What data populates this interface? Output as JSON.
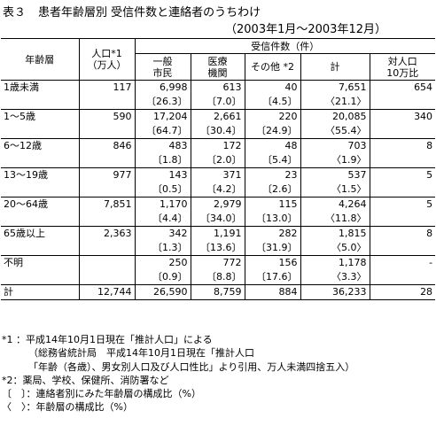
{
  "title": {
    "table_no": "表３",
    "text": "患者年齢層別 受信件数と連絡者のうちわけ"
  },
  "subtitle": "（2003年1月～2003年12月）",
  "headers": {
    "age": "年齢層",
    "pop_line1": "人口*1",
    "pop_line2": "（万人）",
    "group": "受信件数（件）",
    "general_line1": "一般",
    "general_line2": "市民",
    "medical_line1": "医療",
    "medical_line2": "機関",
    "other": "その他 *2",
    "total": "計",
    "ratio_line1": "対人口",
    "ratio_line2": "10万比"
  },
  "rows": [
    {
      "age": "1歳未満",
      "pop": "117",
      "general": "6,998",
      "medical": "613",
      "other": "40",
      "total": "7,651",
      "ratio": "654",
      "p_general": "〔26.3〕",
      "p_medical": "〔7.0〕",
      "p_other": "〔4.5〕",
      "p_total": "〈21.1〉"
    },
    {
      "age": "1～5歳",
      "pop": "590",
      "general": "17,204",
      "medical": "2,661",
      "other": "220",
      "total": "20,085",
      "ratio": "340",
      "p_general": "〔64.7〕",
      "p_medical": "〔30.4〕",
      "p_other": "〔24.9〕",
      "p_total": "〈55.4〉"
    },
    {
      "age": "6～12歳",
      "pop": "846",
      "general": "483",
      "medical": "172",
      "other": "48",
      "total": "703",
      "ratio": "8",
      "p_general": "〔1.8〕",
      "p_medical": "〔2.0〕",
      "p_other": "〔5.4〕",
      "p_total": "〈1.9〉"
    },
    {
      "age": "13～19歳",
      "pop": "977",
      "general": "143",
      "medical": "371",
      "other": "23",
      "total": "537",
      "ratio": "5",
      "p_general": "〔0.5〕",
      "p_medical": "〔4.2〕",
      "p_other": "〔2.6〕",
      "p_total": "〈1.5〉"
    },
    {
      "age": "20～64歳",
      "pop": "7,851",
      "general": "1,170",
      "medical": "2,979",
      "other": "115",
      "total": "4,264",
      "ratio": "5",
      "p_general": "〔4.4〕",
      "p_medical": "〔34.0〕",
      "p_other": "〔13.0〕",
      "p_total": "〈11.8〉"
    },
    {
      "age": "65歳以上",
      "pop": "2,363",
      "general": "342",
      "medical": "1,191",
      "other": "282",
      "total": "1,815",
      "ratio": "8",
      "p_general": "〔1.3〕",
      "p_medical": "〔13.6〕",
      "p_other": "〔31.9〕",
      "p_total": "〈5.0〉"
    },
    {
      "age": "不明",
      "pop": "",
      "general": "250",
      "medical": "772",
      "other": "156",
      "total": "1,178",
      "ratio": "-",
      "p_general": "〔0.9〕",
      "p_medical": "〔8.8〕",
      "p_other": "〔17.6〕",
      "p_total": "〈3.3〉"
    }
  ],
  "total_row": {
    "age": "計",
    "pop": "12,744",
    "general": "26,590",
    "medical": "8,759",
    "other": "884",
    "total": "36,233",
    "ratio": "28"
  },
  "notes": [
    "*1 ：平成14年10月1日現在「推計人口」による",
    "（総務省統計局　平成14年10月1日現在「推計人口",
    "「年齢（各歳）、男女別人口及び人口性比」より引用、万人未満四捨五入）",
    "*2：薬局、学校、保健所、消防署など",
    "〔　〕：連絡者別にみた年齢層の構成比（%）",
    "〈　〉：年齢層の構成比（%）"
  ]
}
